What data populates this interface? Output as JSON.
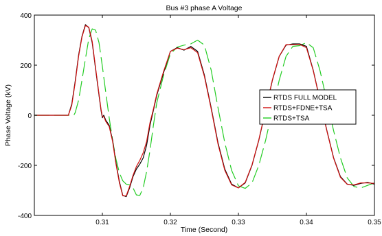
{
  "chart_data": {
    "type": "line",
    "title": "Bus #3 phase A Voltage",
    "xlabel": "Time (Second)",
    "ylabel": "Phase Voltage (kV)",
    "xlim": [
      0.3,
      0.35
    ],
    "ylim": [
      -400,
      400
    ],
    "xticks": [
      0.31,
      0.32,
      0.33,
      0.34,
      0.35
    ],
    "xtick_labels": [
      "0.31",
      "0.32",
      "0.33",
      "0.34",
      "0.35"
    ],
    "yticks": [
      -400,
      -200,
      0,
      200,
      400
    ],
    "ytick_labels": [
      "-400",
      "-200",
      "0",
      "200",
      "400"
    ],
    "grid": false,
    "legend_position": "right",
    "series": [
      {
        "name": "RTDS FULL MODEL",
        "color": "#000000",
        "style": "solid",
        "x": [
          0.3,
          0.305,
          0.3055,
          0.306,
          0.3065,
          0.307,
          0.3075,
          0.308,
          0.3085,
          0.309,
          0.3095,
          0.3098,
          0.31,
          0.3102,
          0.3105,
          0.311,
          0.3115,
          0.312,
          0.3125,
          0.313,
          0.3135,
          0.314,
          0.3145,
          0.315,
          0.3155,
          0.316,
          0.3165,
          0.317,
          0.3175,
          0.318,
          0.319,
          0.32,
          0.321,
          0.322,
          0.323,
          0.324,
          0.325,
          0.326,
          0.327,
          0.328,
          0.329,
          0.33,
          0.331,
          0.332,
          0.333,
          0.334,
          0.335,
          0.336,
          0.337,
          0.338,
          0.339,
          0.34,
          0.341,
          0.342,
          0.343,
          0.344,
          0.345,
          0.346,
          0.347,
          0.348,
          0.349,
          0.35
        ],
        "y": [
          0,
          0,
          45,
          135,
          240,
          315,
          362,
          350,
          290,
          185,
          80,
          20,
          -10,
          0,
          -20,
          -40,
          -100,
          -190,
          -265,
          -320,
          -325,
          -290,
          -245,
          -215,
          -195,
          -170,
          -120,
          -40,
          20,
          80,
          170,
          255,
          270,
          260,
          275,
          255,
          160,
          30,
          -110,
          -215,
          -275,
          -290,
          -270,
          -200,
          -100,
          20,
          140,
          235,
          280,
          285,
          285,
          275,
          180,
          60,
          -60,
          -170,
          -245,
          -275,
          -280,
          -272,
          -268,
          -275
        ]
      },
      {
        "name": "RTDS+FDNE+TSA",
        "color": "#d01010",
        "style": "solid",
        "x": [
          0.3,
          0.305,
          0.3055,
          0.306,
          0.3065,
          0.307,
          0.3075,
          0.308,
          0.3085,
          0.309,
          0.3095,
          0.3098,
          0.31,
          0.3102,
          0.3105,
          0.311,
          0.3115,
          0.312,
          0.3125,
          0.313,
          0.3135,
          0.314,
          0.3145,
          0.315,
          0.3155,
          0.316,
          0.3165,
          0.317,
          0.3175,
          0.318,
          0.319,
          0.32,
          0.321,
          0.322,
          0.323,
          0.324,
          0.325,
          0.326,
          0.327,
          0.328,
          0.329,
          0.33,
          0.331,
          0.332,
          0.333,
          0.334,
          0.335,
          0.336,
          0.337,
          0.338,
          0.339,
          0.34,
          0.341,
          0.342,
          0.343,
          0.344,
          0.345,
          0.346,
          0.347,
          0.348,
          0.349,
          0.35
        ],
        "y": [
          0,
          0,
          40,
          130,
          235,
          312,
          358,
          352,
          295,
          190,
          85,
          25,
          -5,
          -5,
          -25,
          -45,
          -105,
          -195,
          -270,
          -322,
          -322,
          -285,
          -240,
          -205,
          -180,
          -150,
          -105,
          -30,
          25,
          85,
          175,
          255,
          268,
          262,
          270,
          250,
          155,
          25,
          -115,
          -220,
          -278,
          -290,
          -268,
          -198,
          -98,
          22,
          142,
          236,
          282,
          282,
          283,
          270,
          178,
          58,
          -62,
          -172,
          -248,
          -276,
          -278,
          -270,
          -270,
          -272
        ]
      },
      {
        "name": "RTDS+TSA",
        "color": "#22cc22",
        "style": "dashed",
        "x": [
          0.3,
          0.3058,
          0.306,
          0.3065,
          0.307,
          0.3075,
          0.308,
          0.3085,
          0.309,
          0.3095,
          0.31,
          0.3105,
          0.311,
          0.3115,
          0.312,
          0.3125,
          0.313,
          0.3135,
          0.314,
          0.3145,
          0.315,
          0.3155,
          0.316,
          0.3165,
          0.317,
          0.3175,
          0.318,
          0.319,
          0.32,
          0.321,
          0.322,
          0.323,
          0.324,
          0.325,
          0.326,
          0.327,
          0.328,
          0.329,
          0.33,
          0.331,
          0.332,
          0.333,
          0.334,
          0.335,
          0.336,
          0.337,
          0.338,
          0.339,
          0.34,
          0.341,
          0.342,
          0.343,
          0.344,
          0.345,
          0.346,
          0.347,
          0.348,
          0.349,
          0.35
        ],
        "y": [
          0,
          0,
          10,
          60,
          140,
          225,
          305,
          345,
          340,
          290,
          195,
          90,
          -10,
          -100,
          -175,
          -230,
          -262,
          -275,
          -278,
          -290,
          -318,
          -320,
          -290,
          -225,
          -140,
          -40,
          50,
          160,
          245,
          272,
          280,
          285,
          300,
          280,
          180,
          30,
          -110,
          -220,
          -282,
          -292,
          -270,
          -200,
          -100,
          20,
          140,
          235,
          275,
          278,
          290,
          270,
          178,
          58,
          -62,
          -170,
          -250,
          -285,
          -290,
          -280,
          -270
        ]
      }
    ]
  }
}
